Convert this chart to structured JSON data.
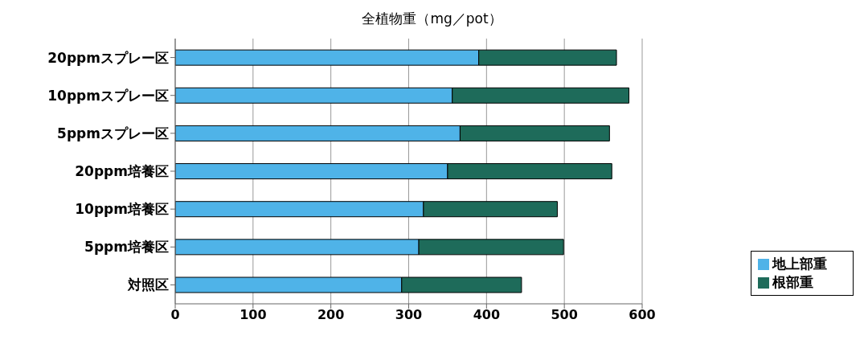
{
  "chart_data": {
    "type": "bar",
    "orientation": "horizontal",
    "stacked": true,
    "title": "全植物重（mg／pot）",
    "categories": [
      "20ppmスプレー区",
      "10ppmスプレー区",
      "5ppmスプレー区",
      "20ppm培養区",
      "10ppm培養区",
      "5ppm培養区",
      "対照区"
    ],
    "series": [
      {
        "name": "地上部重",
        "color": "#4fb3e8",
        "values": [
          390,
          356,
          366,
          350,
          319,
          313,
          291
        ]
      },
      {
        "name": "根部重",
        "color": "#1e6b5a",
        "values": [
          177,
          227,
          192,
          211,
          172,
          186,
          154
        ]
      }
    ],
    "xlim": [
      0,
      600
    ],
    "xticks": [
      0,
      100,
      200,
      300,
      400,
      500,
      600
    ],
    "grid": "x",
    "legend": "bottom right"
  }
}
